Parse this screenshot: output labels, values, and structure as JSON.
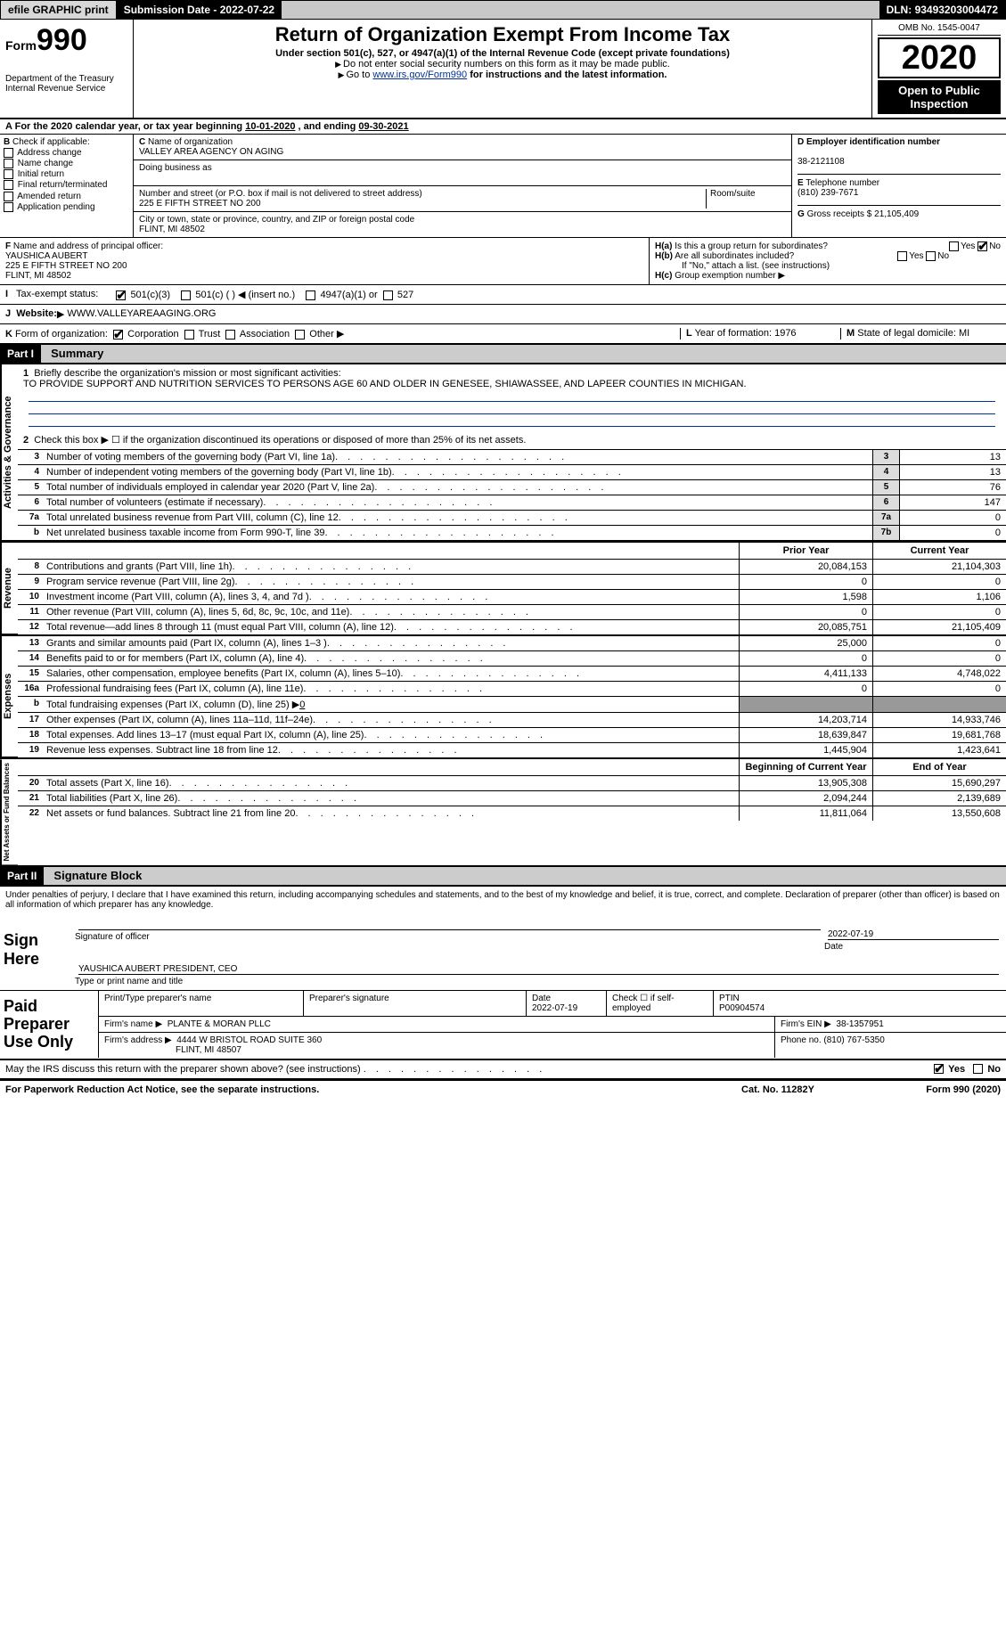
{
  "top": {
    "efile": "efile GRAPHIC print",
    "submission_label": "Submission Date - ",
    "submission_date": "2022-07-22",
    "dln_label": "DLN: ",
    "dln": "93493203004472"
  },
  "header": {
    "form_prefix": "Form",
    "form_number": "990",
    "dept": "Department of the Treasury\nInternal Revenue Service",
    "title": "Return of Organization Exempt From Income Tax",
    "subtitle": "Under section 501(c), 527, or 4947(a)(1) of the Internal Revenue Code (except private foundations)",
    "no_ssn": "Do not enter social security numbers on this form as it may be made public.",
    "goto_prefix": "Go to ",
    "goto_link": "www.irs.gov/Form990",
    "goto_suffix": " for instructions and the latest information.",
    "omb": "OMB No. 1545-0047",
    "year": "2020",
    "open_public": "Open to Public Inspection"
  },
  "period": {
    "text_a": "For the 2020 calendar year, or tax year beginning ",
    "begin": "10-01-2020",
    "text_b": " , and ending ",
    "end": "09-30-2021"
  },
  "B": {
    "label": "Check if applicable:",
    "items": [
      "Address change",
      "Name change",
      "Initial return",
      "Final return/terminated",
      "Amended return",
      "Application pending"
    ]
  },
  "C": {
    "name_label": "Name of organization",
    "name": "VALLEY AREA AGENCY ON AGING",
    "dba_label": "Doing business as",
    "dba": "",
    "street_label": "Number and street (or P.O. box if mail is not delivered to street address)",
    "room_label": "Room/suite",
    "street": "225 E FIFTH STREET NO 200",
    "city_label": "City or town, state or province, country, and ZIP or foreign postal code",
    "city": "FLINT, MI  48502"
  },
  "D": {
    "ein_label": "Employer identification number",
    "ein": "38-2121108",
    "phone_label": "Telephone number",
    "phone": "(810) 239-7671",
    "gross_label": "Gross receipts $ ",
    "gross": "21,105,409"
  },
  "F": {
    "label": "Name and address of principal officer:",
    "name": "YAUSHICA AUBERT",
    "street": "225 E FIFTH STREET NO 200",
    "city": "FLINT, MI  48502"
  },
  "H": {
    "a_label": "Is this a group return for subordinates?",
    "a_yes": "Yes",
    "a_no": "No",
    "b_label": "Are all subordinates included?",
    "b_note": "If \"No,\" attach a list. (see instructions)",
    "c_label": "Group exemption number"
  },
  "I": {
    "label": "Tax-exempt status:",
    "opts": [
      "501(c)(3)",
      "501(c) (  )",
      "(insert no.)",
      "4947(a)(1) or",
      "527"
    ]
  },
  "J": {
    "label": "Website:",
    "value": "WWW.VALLEYAREAAGING.ORG"
  },
  "K": {
    "label": "Form of organization:",
    "opts": [
      "Corporation",
      "Trust",
      "Association",
      "Other"
    ]
  },
  "L": {
    "label": "Year of formation: ",
    "value": "1976"
  },
  "M": {
    "label": "State of legal domicile: ",
    "value": "MI"
  },
  "partI": {
    "num": "Part I",
    "title": "Summary"
  },
  "summary": {
    "q1_label": "Briefly describe the organization's mission or most significant activities:",
    "q1_text": "TO PROVIDE SUPPORT AND NUTRITION SERVICES TO PERSONS AGE 60 AND OLDER IN GENESEE, SHIAWASSEE, AND LAPEER COUNTIES IN MICHIGAN.",
    "q2": "Check this box ▶ ☐  if the organization discontinued its operations or disposed of more than 25% of its net assets.",
    "lines_gov": [
      {
        "n": "3",
        "d": "Number of voting members of the governing body (Part VI, line 1a)",
        "box": "3",
        "v": "13"
      },
      {
        "n": "4",
        "d": "Number of independent voting members of the governing body (Part VI, line 1b)",
        "box": "4",
        "v": "13"
      },
      {
        "n": "5",
        "d": "Total number of individuals employed in calendar year 2020 (Part V, line 2a)",
        "box": "5",
        "v": "76"
      },
      {
        "n": "6",
        "d": "Total number of volunteers (estimate if necessary)",
        "box": "6",
        "v": "147"
      },
      {
        "n": "7a",
        "d": "Total unrelated business revenue from Part VIII, column (C), line 12",
        "box": "7a",
        "v": "0"
      },
      {
        "n": "b",
        "d": "Net unrelated business taxable income from Form 990-T, line 39",
        "box": "7b",
        "v": "0"
      }
    ],
    "col_prior": "Prior Year",
    "col_curr": "Current Year",
    "revenue": [
      {
        "n": "8",
        "d": "Contributions and grants (Part VIII, line 1h)",
        "p": "20,084,153",
        "c": "21,104,303"
      },
      {
        "n": "9",
        "d": "Program service revenue (Part VIII, line 2g)",
        "p": "0",
        "c": "0"
      },
      {
        "n": "10",
        "d": "Investment income (Part VIII, column (A), lines 3, 4, and 7d )",
        "p": "1,598",
        "c": "1,106"
      },
      {
        "n": "11",
        "d": "Other revenue (Part VIII, column (A), lines 5, 6d, 8c, 9c, 10c, and 11e)",
        "p": "0",
        "c": "0"
      },
      {
        "n": "12",
        "d": "Total revenue—add lines 8 through 11 (must equal Part VIII, column (A), line 12)",
        "p": "20,085,751",
        "c": "21,105,409"
      }
    ],
    "expenses": [
      {
        "n": "13",
        "d": "Grants and similar amounts paid (Part IX, column (A), lines 1–3 )",
        "p": "25,000",
        "c": "0"
      },
      {
        "n": "14",
        "d": "Benefits paid to or for members (Part IX, column (A), line 4)",
        "p": "0",
        "c": "0"
      },
      {
        "n": "15",
        "d": "Salaries, other compensation, employee benefits (Part IX, column (A), lines 5–10)",
        "p": "4,411,133",
        "c": "4,748,022"
      },
      {
        "n": "16a",
        "d": "Professional fundraising fees (Part IX, column (A), line 11e)",
        "p": "0",
        "c": "0"
      }
    ],
    "exp_16b": {
      "n": "b",
      "d": "Total fundraising expenses (Part IX, column (D), line 25) ▶",
      "v": "0"
    },
    "expenses2": [
      {
        "n": "17",
        "d": "Other expenses (Part IX, column (A), lines 11a–11d, 11f–24e)",
        "p": "14,203,714",
        "c": "14,933,746"
      },
      {
        "n": "18",
        "d": "Total expenses. Add lines 13–17 (must equal Part IX, column (A), line 25)",
        "p": "18,639,847",
        "c": "19,681,768"
      },
      {
        "n": "19",
        "d": "Revenue less expenses. Subtract line 18 from line 12",
        "p": "1,445,904",
        "c": "1,423,641"
      }
    ],
    "na_col_a": "Beginning of Current Year",
    "na_col_b": "End of Year",
    "netassets": [
      {
        "n": "20",
        "d": "Total assets (Part X, line 16)",
        "p": "13,905,308",
        "c": "15,690,297"
      },
      {
        "n": "21",
        "d": "Total liabilities (Part X, line 26)",
        "p": "2,094,244",
        "c": "2,139,689"
      },
      {
        "n": "22",
        "d": "Net assets or fund balances. Subtract line 21 from line 20",
        "p": "11,811,064",
        "c": "13,550,608"
      }
    ]
  },
  "partII": {
    "num": "Part II",
    "title": "Signature Block"
  },
  "sig": {
    "penalty": "Under penalties of perjury, I declare that I have examined this return, including accompanying schedules and statements, and to the best of my knowledge and belief, it is true, correct, and complete. Declaration of preparer (other than officer) is based on all information of which preparer has any knowledge.",
    "sign_here": "Sign Here",
    "sig_officer_label": "Signature of officer",
    "date_label": "Date",
    "date": "2022-07-19",
    "name_title": "YAUSHICA AUBERT  PRESIDENT, CEO",
    "name_title_label": "Type or print name and title"
  },
  "prep": {
    "label": "Paid Preparer Use Only",
    "print_name_label": "Print/Type preparer's name",
    "sig_label": "Preparer's signature",
    "date_label": "Date",
    "date": "2022-07-19",
    "check_label": "Check ☐ if self-employed",
    "ptin_label": "PTIN",
    "ptin": "P00904574",
    "firm_name_label": "Firm's name ▶",
    "firm_name": "PLANTE & MORAN PLLC",
    "firm_ein_label": "Firm's EIN ▶",
    "firm_ein": "38-1357951",
    "firm_addr_label": "Firm's address ▶",
    "firm_addr1": "4444 W BRISTOL ROAD SUITE 360",
    "firm_addr2": "FLINT, MI  48507",
    "phone_label": "Phone no. ",
    "phone": "(810) 767-5350"
  },
  "discuss": {
    "q": "May the IRS discuss this return with the preparer shown above? (see instructions)",
    "yes": "Yes",
    "no": "No"
  },
  "footer": {
    "pra": "For Paperwork Reduction Act Notice, see the separate instructions.",
    "cat": "Cat. No. 11282Y",
    "form": "Form 990 (2020)"
  },
  "vtabs": {
    "gov": "Activities & Governance",
    "rev": "Revenue",
    "exp": "Expenses",
    "na": "Net Assets or Fund Balances"
  }
}
